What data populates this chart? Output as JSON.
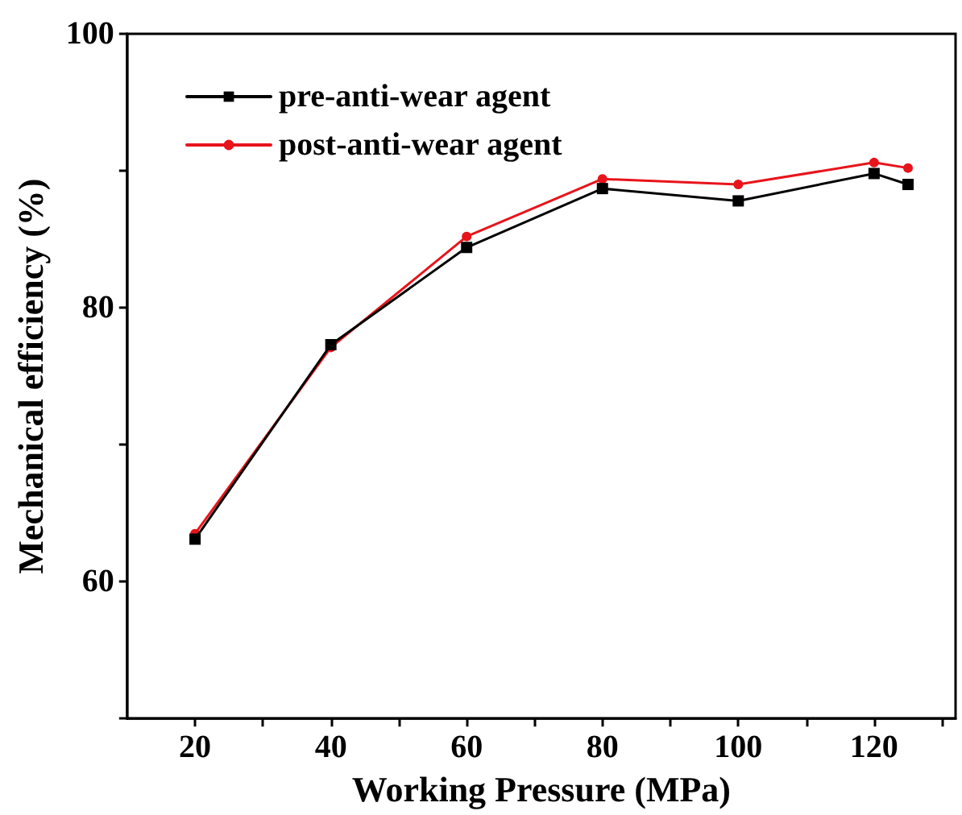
{
  "chart_data": {
    "type": "line",
    "xlabel": "Working Pressure (MPa)",
    "ylabel": "Mechanical efficiency (%)",
    "x": [
      20,
      40,
      60,
      80,
      100,
      120,
      125
    ],
    "series": [
      {
        "name": "pre-anti-wear agent",
        "color": "#000000",
        "marker": "square",
        "values": [
          63.1,
          77.3,
          84.4,
          88.7,
          87.8,
          89.8,
          89.0
        ]
      },
      {
        "name": "post-anti-wear agent",
        "color": "#e8141b",
        "marker": "circle",
        "values": [
          63.5,
          77.1,
          85.2,
          89.4,
          89.0,
          90.6,
          90.2
        ]
      }
    ],
    "xlim": [
      10,
      132
    ],
    "xticks": [
      20,
      {
        "value": 30,
        "label": null
      },
      40,
      {
        "value": 50,
        "label": null
      },
      60,
      {
        "value": 70,
        "label": null
      },
      80,
      {
        "value": 90,
        "label": null
      },
      100,
      {
        "value": 110,
        "label": null
      },
      120,
      {
        "value": 130,
        "label": null
      }
    ],
    "ylim": [
      50,
      100
    ],
    "yticks": [
      {
        "value": 50,
        "label": null
      },
      60,
      {
        "value": 70,
        "label": null
      },
      80,
      {
        "value": 90,
        "label": null
      },
      100
    ],
    "grid": false,
    "legend": "top left",
    "line_style": "solid"
  }
}
